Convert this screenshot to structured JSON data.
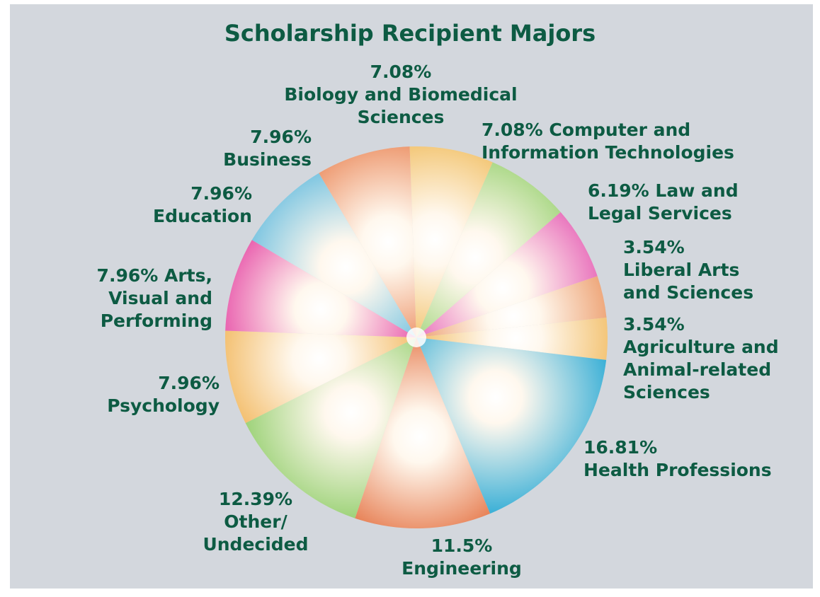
{
  "chart_data": {
    "type": "pie",
    "title": "Scholarship Recipient Majors",
    "slices": [
      {
        "label": [
          "7.08% Computer and",
          "Information Technologies"
        ],
        "value": 7.08,
        "color": "#93cf6a"
      },
      {
        "label": [
          "6.19%  Law and",
          "Legal Services"
        ],
        "value": 6.19,
        "color": "#e24bae"
      },
      {
        "label": [
          "3.54%",
          "Liberal Arts",
          "and Sciences"
        ],
        "value": 3.54,
        "color": "#e88a52"
      },
      {
        "label": [
          "3.54%",
          "Agriculture and",
          "Animal-related",
          "Sciences"
        ],
        "value": 3.54,
        "color": "#efb24c"
      },
      {
        "label": [
          "16.81%",
          "Health Professions"
        ],
        "value": 16.81,
        "color": "#36aed6"
      },
      {
        "label": [
          "11.5%",
          "Engineering"
        ],
        "value": 11.5,
        "color": "#e36d3c"
      },
      {
        "label": [
          "12.39%",
          "Other/",
          "Undecided"
        ],
        "value": 12.39,
        "color": "#8fcd68"
      },
      {
        "label": [
          "7.96%",
          "Psychology"
        ],
        "value": 7.96,
        "color": "#f0b04d"
      },
      {
        "label": [
          "7.96%  Arts,",
          "Visual and",
          "Performing"
        ],
        "value": 7.96,
        "color": "#e3389e"
      },
      {
        "label": [
          "7.96%",
          "Education"
        ],
        "value": 7.96,
        "color": "#5ab8de"
      },
      {
        "label": [
          "7.96%",
          "Business"
        ],
        "value": 7.96,
        "color": "#e98150"
      },
      {
        "label": [
          "7.08%",
          "Biology and Biomedical",
          "Sciences"
        ],
        "value": 7.08,
        "color": "#f0b955"
      }
    ]
  }
}
